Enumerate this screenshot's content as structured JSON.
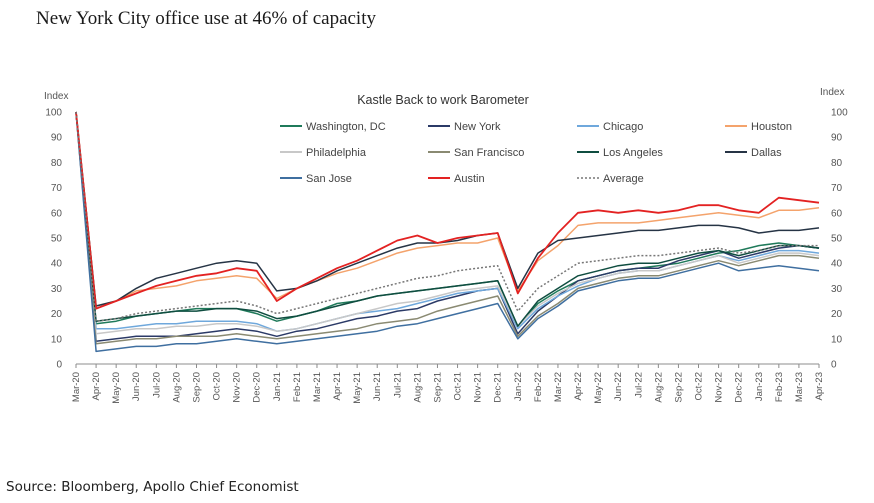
{
  "header": {
    "title": "New York City office use at 46% of capacity"
  },
  "footer": {
    "source": "Source: Bloomberg, Apollo Chief Economist"
  },
  "chart_data": {
    "type": "line",
    "title": "Kastle Back to work Barometer",
    "ylabel_left": "Index",
    "ylabel_right": "Index",
    "ylim": [
      0,
      100
    ],
    "yticks": [
      0,
      10,
      20,
      30,
      40,
      50,
      60,
      70,
      80,
      90,
      100
    ],
    "x_ticks": [
      "Mar-20",
      "Apr-20",
      "May-20",
      "Jun-20",
      "Jul-20",
      "Aug-20",
      "Sep-20",
      "Oct-20",
      "Nov-20",
      "Dec-20",
      "Jan-21",
      "Feb-21",
      "Mar-21",
      "Apr-21",
      "May-21",
      "Jun-21",
      "Jul-21",
      "Aug-21",
      "Sep-21",
      "Oct-21",
      "Nov-21",
      "Dec-21",
      "Jan-22",
      "Feb-22",
      "Mar-22",
      "Apr-22",
      "May-22",
      "Jun-22",
      "Jul-22",
      "Aug-22",
      "Sep-22",
      "Oct-22",
      "Nov-22",
      "Dec-22",
      "Jan-23",
      "Feb-23",
      "Mar-23",
      "Apr-23"
    ],
    "grid": false,
    "legend_position": "top",
    "series": [
      {
        "name": "Washington, DC",
        "color": "#1f7a5a",
        "dash": false,
        "values": [
          100,
          16,
          17,
          19,
          20,
          21,
          22,
          22,
          22,
          20,
          17,
          19,
          21,
          24,
          25,
          27,
          28,
          29,
          30,
          31,
          32,
          33,
          15,
          24,
          29,
          33,
          35,
          37,
          38,
          39,
          40,
          42,
          44,
          45,
          47,
          48,
          47,
          46
        ]
      },
      {
        "name": "New York",
        "color": "#2b3a67",
        "dash": false,
        "values": [
          100,
          9,
          10,
          11,
          11,
          11,
          12,
          13,
          14,
          13,
          11,
          13,
          14,
          16,
          18,
          19,
          21,
          22,
          25,
          27,
          29,
          30,
          12,
          21,
          27,
          33,
          35,
          37,
          38,
          38,
          41,
          43,
          45,
          42,
          44,
          46,
          47,
          46
        ]
      },
      {
        "name": "Chicago",
        "color": "#6fa8dc",
        "dash": false,
        "values": [
          100,
          14,
          14,
          15,
          16,
          16,
          17,
          17,
          17,
          16,
          13,
          14,
          16,
          18,
          20,
          21,
          22,
          24,
          26,
          28,
          29,
          30,
          14,
          22,
          27,
          31,
          34,
          36,
          37,
          37,
          39,
          41,
          43,
          41,
          43,
          45,
          45,
          44
        ]
      },
      {
        "name": "Houston",
        "color": "#f4a36c",
        "dash": false,
        "values": [
          100,
          23,
          25,
          29,
          30,
          31,
          33,
          34,
          35,
          34,
          26,
          30,
          33,
          36,
          38,
          41,
          44,
          46,
          47,
          48,
          48,
          50,
          29,
          41,
          47,
          55,
          56,
          56,
          56,
          57,
          58,
          59,
          60,
          59,
          58,
          61,
          61,
          62
        ]
      },
      {
        "name": "Philadelphia",
        "color": "#c8c8c8",
        "dash": false,
        "values": [
          100,
          12,
          13,
          14,
          14,
          15,
          15,
          16,
          16,
          15,
          13,
          14,
          16,
          18,
          20,
          22,
          24,
          25,
          27,
          29,
          30,
          31,
          15,
          23,
          28,
          32,
          34,
          36,
          37,
          37,
          39,
          41,
          43,
          40,
          42,
          44,
          44,
          43
        ]
      },
      {
        "name": "San Francisco",
        "color": "#8a8a72",
        "dash": false,
        "values": [
          100,
          8,
          9,
          10,
          10,
          11,
          11,
          11,
          12,
          11,
          10,
          11,
          12,
          13,
          14,
          16,
          17,
          18,
          21,
          23,
          25,
          27,
          11,
          19,
          24,
          30,
          32,
          34,
          35,
          35,
          37,
          39,
          41,
          39,
          41,
          43,
          43,
          42
        ]
      },
      {
        "name": "Los Angeles",
        "color": "#0f4d40",
        "dash": false,
        "values": [
          100,
          17,
          18,
          19,
          20,
          21,
          21,
          22,
          22,
          21,
          18,
          19,
          21,
          23,
          25,
          27,
          28,
          29,
          30,
          31,
          32,
          33,
          15,
          25,
          30,
          35,
          37,
          39,
          40,
          40,
          42,
          44,
          45,
          43,
          45,
          47,
          47,
          46
        ]
      },
      {
        "name": "Dallas",
        "color": "#263445",
        "dash": false,
        "values": [
          100,
          23,
          25,
          30,
          34,
          36,
          38,
          40,
          41,
          40,
          29,
          30,
          33,
          37,
          40,
          43,
          46,
          48,
          48,
          49,
          51,
          52,
          30,
          44,
          49,
          50,
          51,
          52,
          53,
          53,
          54,
          55,
          55,
          54,
          52,
          53,
          53,
          54
        ]
      },
      {
        "name": "San Jose",
        "color": "#3f6fa0",
        "dash": false,
        "values": [
          100,
          5,
          6,
          7,
          7,
          8,
          8,
          9,
          10,
          9,
          8,
          9,
          10,
          11,
          12,
          13,
          15,
          16,
          18,
          20,
          22,
          24,
          10,
          18,
          23,
          29,
          31,
          33,
          34,
          34,
          36,
          38,
          40,
          37,
          38,
          39,
          38,
          37
        ]
      },
      {
        "name": "Austin",
        "color": "#e32222",
        "dash": false,
        "values": [
          100,
          22,
          25,
          28,
          31,
          33,
          35,
          36,
          38,
          37,
          25,
          30,
          34,
          38,
          41,
          45,
          49,
          51,
          48,
          50,
          51,
          52,
          28,
          42,
          52,
          60,
          61,
          60,
          61,
          60,
          61,
          63,
          63,
          61,
          60,
          66,
          65,
          64
        ]
      },
      {
        "name": "Average",
        "color": "#777777",
        "dash": true,
        "values": [
          100,
          17,
          18,
          20,
          21,
          22,
          23,
          24,
          25,
          23,
          20,
          22,
          24,
          26,
          28,
          30,
          32,
          34,
          35,
          37,
          38,
          39,
          21,
          30,
          35,
          40,
          41,
          42,
          43,
          43,
          44,
          45,
          46,
          44,
          45,
          47,
          47,
          47
        ]
      }
    ]
  }
}
